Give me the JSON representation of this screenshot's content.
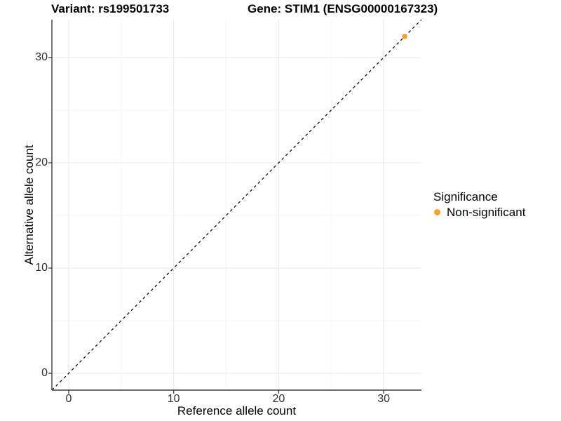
{
  "header": {
    "title_variant": "Variant: rs199501733",
    "title_gene": "Gene: STIM1 (ENSG00000167323)"
  },
  "legend": {
    "title": "Significance",
    "items": [
      {
        "label": "Non-significant",
        "color": "#F9A12C"
      }
    ],
    "position": "right"
  },
  "chart_data": {
    "type": "scatter",
    "xlabel": "Reference allele count",
    "ylabel": "Alternative allele count",
    "xlim": [
      -1.6,
      33.6
    ],
    "ylim": [
      -1.6,
      33.6
    ],
    "x_major_ticks": [
      0,
      10,
      20,
      30
    ],
    "y_major_ticks": [
      0,
      10,
      20,
      30
    ],
    "x_minor_ticks": [
      5,
      15,
      25
    ],
    "y_minor_ticks": [
      5,
      15,
      25
    ],
    "grid": "major+minor on white background",
    "series": [
      {
        "name": "Non-significant",
        "color": "#F9A12C",
        "points": [
          [
            32,
            32
          ]
        ]
      }
    ],
    "reference_line": {
      "slope": 1,
      "intercept": 0,
      "style": "dashed",
      "color": "#000000"
    }
  },
  "colors": {
    "background": "#FFFFFF",
    "grid_major": "#E8E8E8",
    "grid_minor": "#F4F4F4",
    "axis_line": "#3C3C3C",
    "tick_text": "#303030",
    "point": "#F9A12C"
  }
}
